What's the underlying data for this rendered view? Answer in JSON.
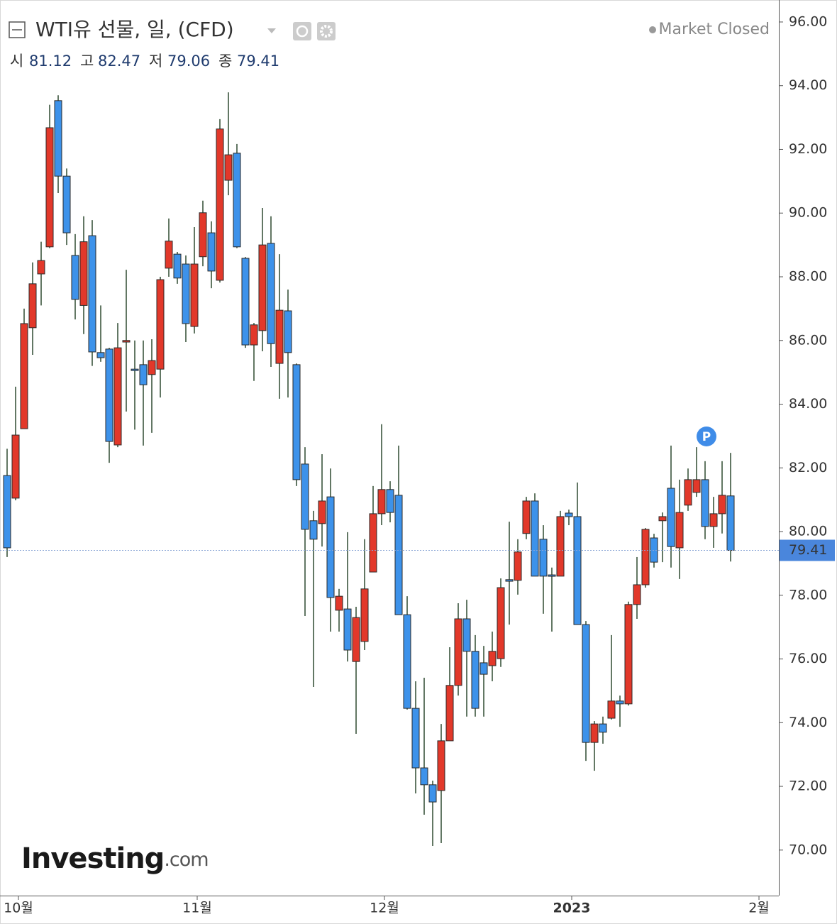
{
  "chart_data": {
    "type": "candlestick",
    "title": "WTI유 선물, 일, (CFD)",
    "status": "Market Closed",
    "ohlc_labels": [
      "시",
      "고",
      "저",
      "종"
    ],
    "event_marker": "P",
    "watermark": [
      "Investing",
      ".com"
    ],
    "up_color": "#e2382a",
    "down_color": "#3d92ea",
    "wick_color": "#2f4a30",
    "categories": [
      null,
      "10월",
      null,
      null,
      null,
      null,
      null,
      null,
      null,
      null,
      null,
      null,
      null,
      null,
      null,
      null,
      null,
      null,
      null,
      null,
      null,
      null,
      "11월",
      null,
      null,
      null,
      null,
      null,
      null,
      null,
      null,
      null,
      null,
      null,
      null,
      null,
      null,
      null,
      null,
      null,
      null,
      null,
      null,
      null,
      "12월",
      null,
      null,
      null,
      null,
      null,
      null,
      null,
      null,
      null,
      null,
      null,
      null,
      null,
      null,
      null,
      null,
      null,
      null,
      null,
      null,
      null,
      "2023",
      null,
      null,
      null,
      null,
      null,
      null,
      null,
      null,
      null,
      null,
      null,
      null,
      null,
      null,
      null,
      null,
      null,
      null,
      null,
      null,
      null,
      "2월"
    ],
    "open": [
      81.76,
      81.05,
      83.23,
      86.4,
      88.09,
      88.94,
      93.53,
      91.16,
      88.67,
      87.1,
      89.29,
      85.62,
      85.73,
      82.72,
      85.95,
      85.1,
      85.24,
      84.93,
      85.1,
      88.27,
      88.71,
      88.4,
      86.44,
      88.63,
      89.38,
      87.89,
      91.03,
      91.88,
      88.58,
      85.86,
      86.31,
      89.05,
      85.28,
      86.93,
      85.24,
      82.12,
      80.34,
      80.25,
      81.09,
      77.53,
      77.57,
      75.92,
      76.55,
      78.73,
      80.56,
      81.32,
      81.14,
      77.39,
      74.45,
      72.58,
      72.05,
      71.87,
      73.43,
      75.17,
      77.26,
      76.24,
      75.88,
      75.79,
      76.01,
      78.49,
      78.47,
      79.94,
      80.96,
      79.76,
      78.64,
      78.6,
      80.58,
      80.47,
      77.08,
      73.38,
      73.96,
      74.14,
      74.68,
      74.59,
      77.71,
      78.33,
      79.8,
      80.34,
      81.36,
      79.49,
      80.83,
      81.23,
      81.63,
      80.16,
      80.56,
      81.12,
      null,
      null,
      null
    ],
    "high": [
      82.6,
      84.55,
      87.0,
      88.45,
      89.1,
      93.4,
      93.7,
      91.4,
      89.34,
      89.9,
      89.78,
      87.1,
      85.77,
      86.55,
      88.22,
      86.0,
      86.0,
      86.04,
      88.0,
      89.83,
      88.78,
      88.67,
      89.56,
      90.39,
      89.74,
      92.95,
      93.79,
      92.17,
      88.62,
      86.55,
      90.16,
      89.9,
      88.71,
      87.6,
      85.28,
      82.65,
      80.65,
      82.43,
      81.98,
      78.2,
      79.98,
      77.64,
      79.76,
      81.43,
      83.37,
      81.58,
      82.7,
      77.97,
      75.3,
      75.41,
      72.18,
      73.96,
      76.37,
      77.75,
      77.86,
      76.75,
      76.41,
      76.86,
      78.53,
      80.31,
      79.76,
      81.09,
      81.2,
      80.2,
      78.87,
      80.65,
      80.69,
      81.54,
      77.19,
      74.05,
      74.19,
      76.75,
      74.85,
      77.8,
      79.2,
      80.11,
      79.93,
      80.6,
      82.7,
      81.63,
      81.98,
      82.65,
      82.21,
      81.09,
      82.21,
      82.47,
      null,
      null,
      null
    ],
    "low": [
      79.2,
      80.98,
      83.23,
      85.55,
      87.1,
      88.9,
      90.63,
      89.0,
      86.66,
      86.2,
      85.2,
      85.33,
      82.16,
      82.65,
      83.77,
      83.2,
      82.7,
      83.1,
      84.21,
      88.0,
      87.78,
      85.95,
      86.22,
      88.33,
      87.64,
      87.82,
      90.56,
      88.9,
      85.77,
      84.73,
      85.66,
      85.17,
      84.17,
      84.21,
      81.43,
      77.35,
      75.12,
      79.53,
      76.86,
      76.86,
      75.92,
      73.65,
      76.28,
      78.73,
      80.2,
      80.29,
      77.39,
      74.41,
      71.78,
      71.11,
      70.13,
      70.22,
      73.43,
      74.85,
      74.19,
      74.19,
      74.19,
      75.3,
      75.75,
      77.08,
      78.02,
      79.76,
      78.6,
      77.42,
      76.86,
      78.6,
      80.2,
      77.08,
      72.8,
      72.49,
      73.34,
      74.1,
      73.87,
      74.54,
      77.26,
      78.24,
      78.87,
      79.04,
      78.87,
      78.51,
      80.65,
      81.09,
      79.76,
      79.49,
      79.94,
      79.06,
      null,
      null,
      null
    ],
    "close": [
      79.49,
      83.03,
      86.53,
      87.78,
      88.51,
      92.68,
      91.16,
      89.38,
      87.29,
      89.1,
      85.64,
      85.46,
      82.83,
      85.77,
      86.0,
      85.06,
      84.61,
      85.37,
      87.91,
      89.12,
      87.96,
      86.53,
      88.4,
      90.01,
      88.18,
      92.64,
      91.83,
      88.94,
      85.86,
      86.49,
      89.0,
      85.9,
      86.95,
      85.62,
      81.63,
      80.07,
      79.76,
      80.96,
      77.93,
      77.97,
      76.28,
      77.3,
      78.2,
      80.56,
      81.32,
      80.6,
      77.39,
      74.45,
      72.58,
      72.05,
      71.51,
      73.43,
      75.17,
      77.26,
      76.24,
      74.45,
      75.52,
      76.24,
      78.24,
      78.44,
      79.36,
      80.96,
      78.6,
      78.6,
      78.6,
      80.47,
      80.47,
      77.08,
      73.38,
      73.96,
      73.7,
      74.68,
      74.59,
      77.71,
      78.33,
      80.07,
      79.04,
      80.47,
      79.53,
      80.6,
      81.63,
      81.63,
      80.16,
      80.56,
      81.14,
      79.41,
      null,
      null,
      null
    ],
    "ylim": [
      68.57,
      96.69
    ],
    "yticks": [
      {
        "value": 70,
        "label": "70.00"
      },
      {
        "value": 72,
        "label": "72.00"
      },
      {
        "value": 74,
        "label": "74.00"
      },
      {
        "value": 76,
        "label": "76.00"
      },
      {
        "value": 78,
        "label": "78.00"
      },
      {
        "value": 80,
        "label": "80.00"
      },
      {
        "value": 82,
        "label": "82.00"
      },
      {
        "value": 84,
        "label": "84.00"
      },
      {
        "value": 86,
        "label": "86.00"
      },
      {
        "value": 88,
        "label": "88.00"
      },
      {
        "value": 90,
        "label": "90.00"
      },
      {
        "value": 92,
        "label": "92.00"
      },
      {
        "value": 94,
        "label": "94.00"
      },
      {
        "value": 96,
        "label": "96.00"
      }
    ],
    "grid": false,
    "price_line": true
  }
}
